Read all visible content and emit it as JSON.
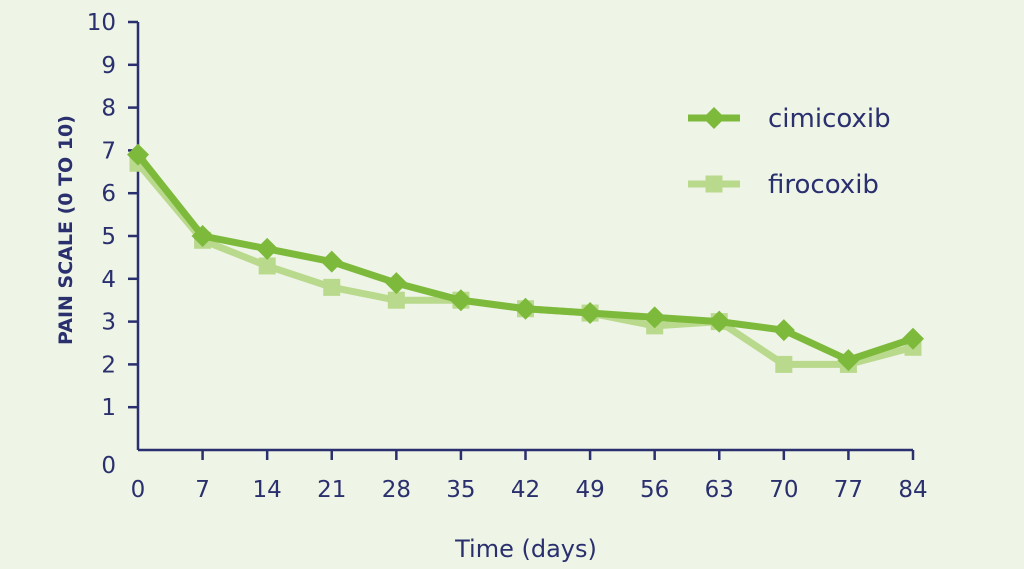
{
  "chart_data": {
    "type": "line",
    "title": "",
    "xlabel": "Time (days)",
    "ylabel": "PAIN SCALE (0 TO 10)",
    "x": [
      0,
      7,
      14,
      21,
      28,
      35,
      42,
      49,
      56,
      63,
      70,
      77,
      84
    ],
    "xlim": [
      0,
      84
    ],
    "ylim": [
      0,
      10
    ],
    "yticks": [
      0,
      1,
      2,
      3,
      4,
      5,
      6,
      7,
      8,
      9,
      10
    ],
    "grid": false,
    "legend_position": "top-right",
    "series": [
      {
        "name": "cimicoxib",
        "marker": "diamond",
        "color": "#7dba3c",
        "values": [
          6.9,
          5.0,
          4.7,
          4.4,
          3.9,
          3.5,
          3.3,
          3.2,
          3.1,
          3.0,
          2.8,
          2.1,
          2.6
        ]
      },
      {
        "name": "firocoxib",
        "marker": "square",
        "color": "#b9d98d",
        "values": [
          6.7,
          4.9,
          4.3,
          3.8,
          3.5,
          3.5,
          3.3,
          3.2,
          2.9,
          3.0,
          2.0,
          2.0,
          2.4
        ]
      }
    ]
  },
  "colors": {
    "axis": "#2a2f6e",
    "background": "#eef4e6"
  }
}
